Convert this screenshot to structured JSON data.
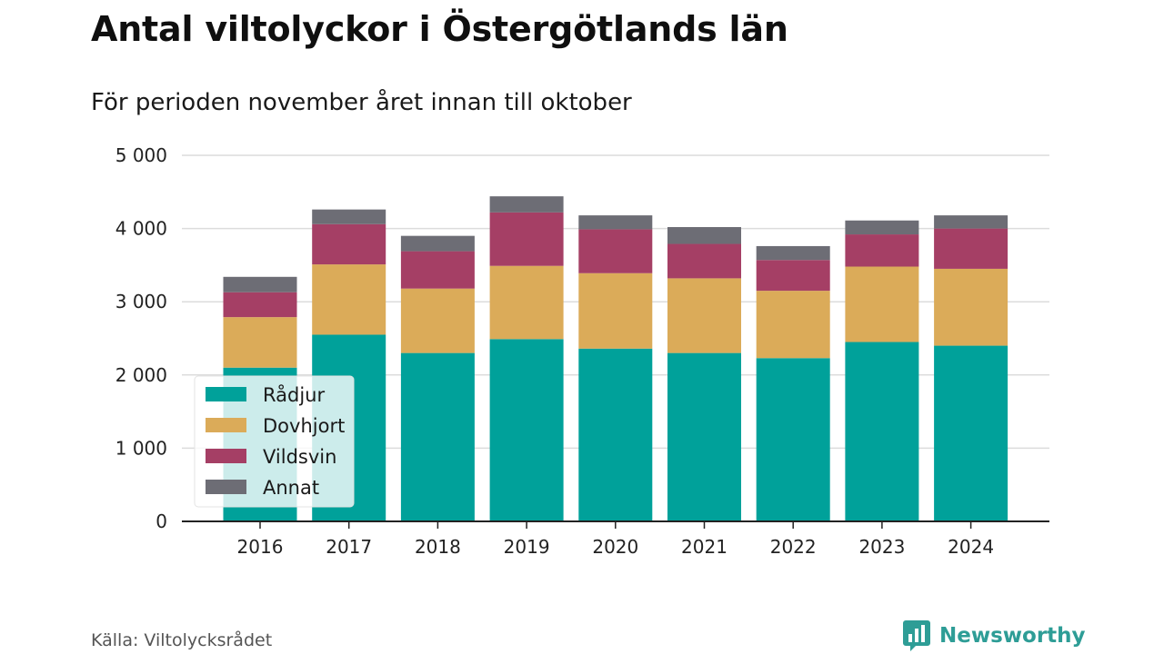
{
  "header": {
    "title": "Antal viltolyckor i Östergötlands län",
    "subtitle": "För perioden november året innan till oktober"
  },
  "footer": {
    "source": "Källa: Viltolycksrådet",
    "brand": "Newsworthy",
    "brand_icon": "newsworthy-chart-bubble-icon",
    "brand_color": "#2e9d96"
  },
  "chart_data": {
    "type": "bar",
    "stacked": true,
    "categories": [
      "2016",
      "2017",
      "2018",
      "2019",
      "2020",
      "2021",
      "2022",
      "2023",
      "2024"
    ],
    "series": [
      {
        "name": "Rådjur",
        "color": "#00a19a",
        "values": [
          2100,
          2550,
          2300,
          2490,
          2360,
          2300,
          2230,
          2450,
          2400
        ]
      },
      {
        "name": "Dovhjort",
        "color": "#dbab59",
        "values": [
          690,
          960,
          880,
          1000,
          1030,
          1020,
          920,
          1030,
          1050
        ]
      },
      {
        "name": "Vildsvin",
        "color": "#a53f65",
        "values": [
          340,
          550,
          510,
          730,
          600,
          470,
          420,
          440,
          550
        ]
      },
      {
        "name": "Annat",
        "color": "#6d6d75",
        "values": [
          210,
          200,
          210,
          220,
          190,
          230,
          190,
          190,
          180
        ]
      }
    ],
    "ylim": [
      0,
      5000
    ],
    "yticks": [
      0,
      1000,
      2000,
      3000,
      4000,
      5000
    ],
    "ytick_labels": [
      "0",
      "1 000",
      "2 000",
      "3 000",
      "4 000",
      "5 000"
    ],
    "xlabel": "",
    "ylabel": "",
    "grid": true,
    "legend_position": "bottom-left"
  }
}
